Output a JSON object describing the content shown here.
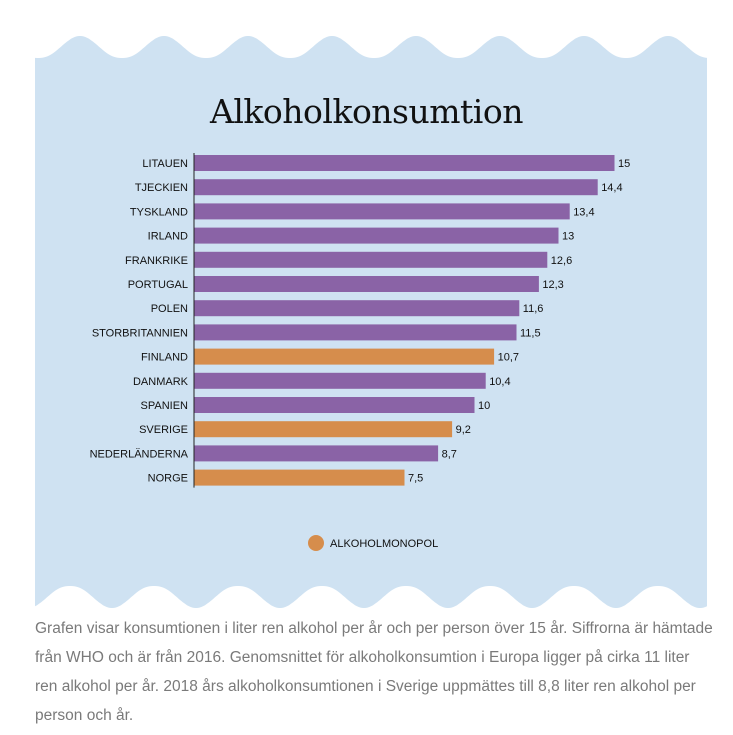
{
  "chart_data": {
    "type": "bar",
    "orientation": "horizontal",
    "title": "Alkoholkonsumtion",
    "categories": [
      "LITAUEN",
      "TJECKIEN",
      "TYSKLAND",
      "IRLAND",
      "FRANKRIKE",
      "PORTUGAL",
      "POLEN",
      "STORBRITANNIEN",
      "FINLAND",
      "DANMARK",
      "SPANIEN",
      "SVERIGE",
      "NEDERLÄNDERNA",
      "NORGE"
    ],
    "values": [
      15,
      14.4,
      13.4,
      13,
      12.6,
      12.3,
      11.6,
      11.5,
      10.7,
      10.4,
      10,
      9.2,
      8.7,
      7.5
    ],
    "value_labels": [
      "15",
      "14,4",
      "13,4",
      "13",
      "12,6",
      "12,3",
      "11,6",
      "11,5",
      "10,7",
      "10,4",
      "10",
      "9,2",
      "8,7",
      "7,5"
    ],
    "monopoly": [
      false,
      false,
      false,
      false,
      false,
      false,
      false,
      false,
      true,
      false,
      false,
      true,
      false,
      true
    ],
    "xlim": [
      0,
      15
    ],
    "grid": false,
    "legend": {
      "label": "ALKOHOLMONOPOL",
      "placement": "bottom-center"
    },
    "colors": {
      "default": "#8a63a6",
      "monopoly": "#d68d4c",
      "background": "#cfe2f2"
    }
  },
  "caption": "Grafen visar konsumtionen i liter ren alkohol per år och per person över 15 år. Siffrorna är hämtade från WHO och är från 2016. Genomsnittet för alkoholkonsumtion i Europa ligger på cirka 11 liter ren alkohol per år. 2018 års alkoholkonsumtionen i Sverige uppmättes till 8,8 liter ren alkohol per person och år."
}
